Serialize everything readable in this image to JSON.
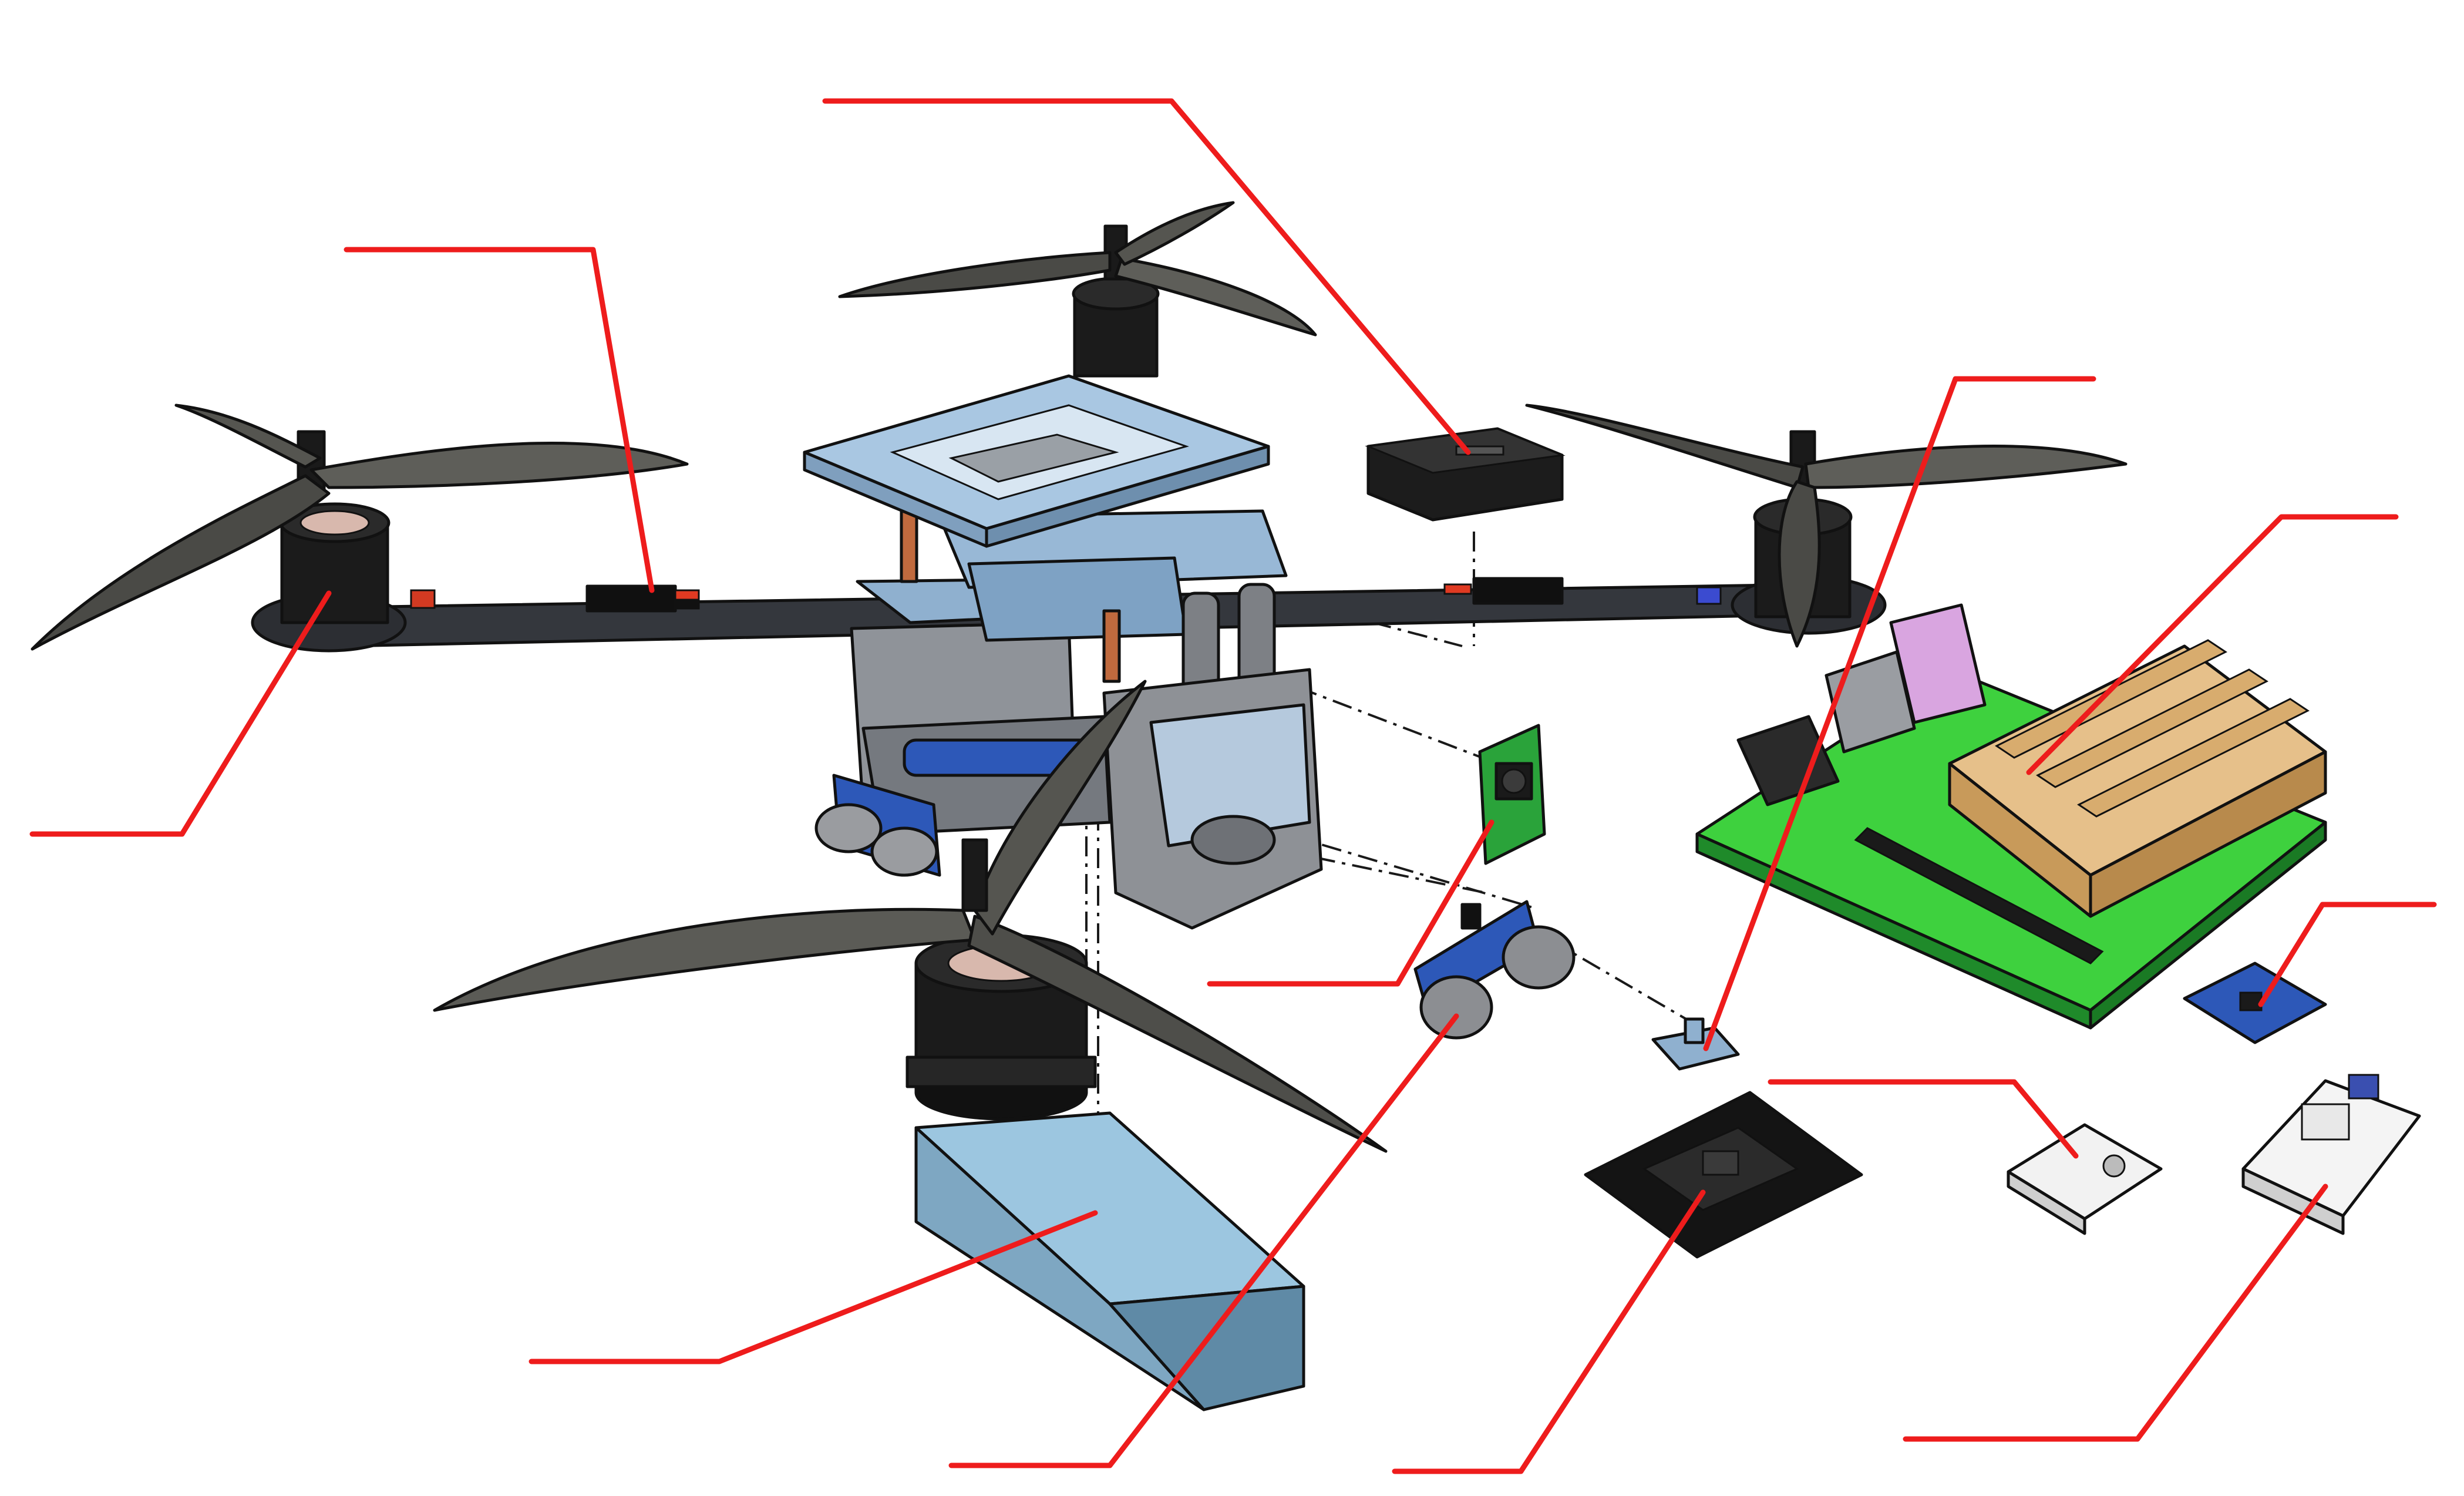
{
  "diagram": {
    "kind": "exploded-assembly",
    "callout_color": "#ee1c1c",
    "callout_labels": [],
    "colors": {
      "arm": "#3a3d44",
      "frame_plate": "#a8c6e2",
      "propeller": "#5a5a55",
      "motor": "#1c1c1c",
      "battery": "#8fbad6",
      "board_green": "#3ed13e",
      "heatsink": "#dcb37a",
      "sensor_blue": "#2d58b8"
    }
  }
}
